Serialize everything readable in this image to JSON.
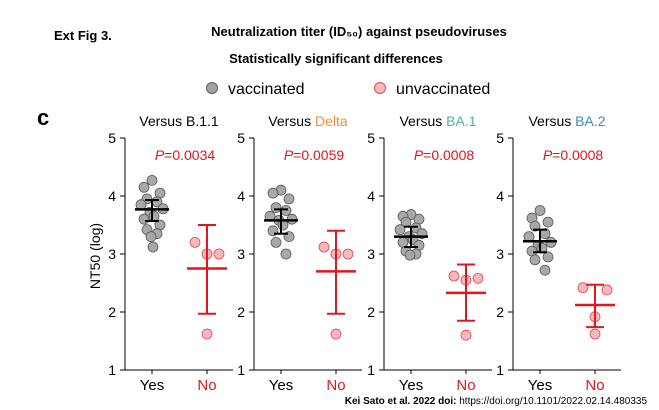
{
  "header": {
    "fig_label": "Ext Fig 3.",
    "title": "Neutralization titer (ID₅₀) against pseudoviruses",
    "subtitle": "Statistically significant differences",
    "panel_letter": "c",
    "credit_bold": "Kei Sato et al. 2022 doi:",
    "credit_link": "https://doi.org/10.1101/2022.02.14.480335"
  },
  "colors": {
    "vaccinated_fill": "#a3a3a3",
    "vaccinated_stroke": "#595959",
    "unvaccinated_fill": "#f7b8bc",
    "unvaccinated_stroke": "#e0474f",
    "mean_vaccinated": "#000000",
    "mean_unvaccinated": "#e8141c",
    "pvalue": "#e8141c"
  },
  "chart_data": {
    "type": "scatter",
    "ylabel": "NT50 (log)",
    "ylim": [
      1,
      5
    ],
    "yticks": [
      "1",
      "2",
      "3",
      "4",
      "5"
    ],
    "categories": [
      "Yes",
      "No"
    ],
    "legend": {
      "placement": "top",
      "entries": [
        {
          "name": "vaccinated",
          "series": "vaccinated"
        },
        {
          "name": "unvaccinated",
          "series": "unvaccinated"
        }
      ]
    },
    "panels": [
      {
        "title_prefix": "Versus ",
        "title_variant": "B.1.1",
        "variant_color": "#000000",
        "p_label": "P",
        "p_value": "=0.0034",
        "vaccinated": {
          "values": [
            4.27,
            4.15,
            4.05,
            3.95,
            3.9,
            3.85,
            3.78,
            3.72,
            3.65,
            3.6,
            3.5,
            3.42,
            3.35,
            3.3,
            3.12
          ],
          "mean": 3.77,
          "sd_low": 3.57,
          "sd_high": 3.93
        },
        "unvaccinated": {
          "values": [
            3.2,
            3.0,
            3.0,
            1.62
          ],
          "mean": 2.75,
          "sd_low": 1.97,
          "sd_high": 3.5
        }
      },
      {
        "title_prefix": "Versus ",
        "title_variant": "Delta",
        "variant_color": "#f08e37",
        "p_label": "P",
        "p_value": "=0.0059",
        "vaccinated": {
          "values": [
            4.1,
            4.05,
            3.95,
            3.8,
            3.75,
            3.65,
            3.6,
            3.58,
            3.5,
            3.4,
            3.3,
            3.2,
            3.0
          ],
          "mean": 3.58,
          "sd_low": 3.35,
          "sd_high": 3.77
        },
        "unvaccinated": {
          "values": [
            3.12,
            3.0,
            3.0,
            1.62
          ],
          "mean": 2.7,
          "sd_low": 1.97,
          "sd_high": 3.4
        }
      },
      {
        "title_prefix": "Versus ",
        "title_variant": "BA.1",
        "variant_color": "#4fb59a",
        "p_label": "P",
        "p_value": "=0.0008",
        "vaccinated": {
          "values": [
            3.68,
            3.65,
            3.6,
            3.55,
            3.45,
            3.42,
            3.35,
            3.3,
            3.25,
            3.2,
            3.15,
            3.05,
            3.0,
            2.98
          ],
          "mean": 3.3,
          "sd_low": 3.12,
          "sd_high": 3.47
        },
        "unvaccinated": {
          "values": [
            2.62,
            2.58,
            2.55,
            1.6
          ],
          "mean": 2.33,
          "sd_low": 1.85,
          "sd_high": 2.82
        }
      },
      {
        "title_prefix": "Versus ",
        "title_variant": "BA.2",
        "variant_color": "#3a8eb0",
        "p_label": "P",
        "p_value": "=0.0008",
        "vaccinated": {
          "values": [
            3.75,
            3.62,
            3.55,
            3.48,
            3.35,
            3.3,
            3.2,
            3.15,
            3.1,
            3.05,
            2.95,
            2.9,
            2.72
          ],
          "mean": 3.22,
          "sd_low": 3.03,
          "sd_high": 3.42
        },
        "unvaccinated": {
          "values": [
            2.42,
            2.38,
            1.92,
            1.62
          ],
          "mean": 2.12,
          "sd_low": 1.74,
          "sd_high": 2.47
        }
      }
    ]
  }
}
